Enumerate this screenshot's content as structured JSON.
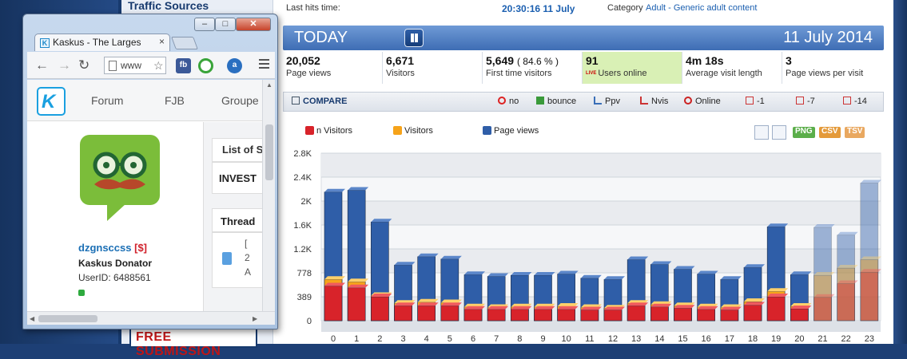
{
  "side": {
    "title": "Traffic Sources",
    "free_submission": "FREE SUBMISSION"
  },
  "header": {
    "last_hits_label": "Last hits time:",
    "last_hits_value": "20:30:16 11 July",
    "category_label": "Category",
    "category_value": "Adult - Generic adult content"
  },
  "today": {
    "label": "TODAY",
    "date": "11 July 2014"
  },
  "summary": [
    {
      "value": "20,052",
      "label": "Page views"
    },
    {
      "value": "6,671",
      "label": "Visitors"
    },
    {
      "value": "5,649",
      "pct": "( 84.6 % )",
      "label": "First time visitors"
    },
    {
      "value": "91",
      "live": "LIVE",
      "label": "Users online"
    },
    {
      "value": "4m 18s",
      "label": "Average visit length"
    },
    {
      "value": "3",
      "label": "Page views per visit"
    }
  ],
  "compare": {
    "title": "COMPARE",
    "items": [
      "no",
      "bounce",
      "Ppv",
      "Nvis",
      "Online",
      "-1",
      "-7",
      "-14"
    ]
  },
  "legend": [
    "n Visitors",
    "Visitors",
    "Page views"
  ],
  "export": [
    "PNG",
    "CSV",
    "TSV"
  ],
  "colors": {
    "red": "#d8232a",
    "orange": "#f6a31a",
    "blue": "#2f5ea8",
    "accent": "#3e6db4"
  },
  "chart_data": {
    "type": "bar",
    "categories": [
      "0",
      "1",
      "2",
      "3",
      "4",
      "5",
      "6",
      "7",
      "8",
      "9",
      "10",
      "11",
      "12",
      "13",
      "14",
      "15",
      "16",
      "17",
      "18",
      "19",
      "20",
      "21",
      "22",
      "23"
    ],
    "y_ticks": [
      "0",
      "389",
      "778",
      "1.2K",
      "1.6K",
      "2K",
      "2.4K",
      "2.8K"
    ],
    "ylim": [
      0,
      2800
    ],
    "grid": true,
    "series": [
      {
        "name": "Page views",
        "values": [
          2150,
          2180,
          1650,
          930,
          1070,
          1030,
          770,
          740,
          760,
          760,
          780,
          710,
          690,
          1020,
          940,
          860,
          780,
          690,
          890,
          1570,
          770,
          1560,
          1430,
          2300
        ]
      },
      {
        "name": "Visitors",
        "values": [
          690,
          650,
          420,
          290,
          310,
          300,
          230,
          220,
          230,
          230,
          240,
          220,
          210,
          290,
          270,
          250,
          230,
          220,
          320,
          490,
          240,
          760,
          880,
          1020
        ]
      },
      {
        "name": "n Visitors",
        "values": [
          580,
          550,
          400,
          250,
          250,
          250,
          190,
          190,
          190,
          190,
          190,
          180,
          180,
          250,
          230,
          210,
          190,
          180,
          260,
          400,
          200,
          390,
          620,
          810
        ]
      }
    ]
  },
  "browser": {
    "tab_title": "Kaskus - The Larges",
    "tab_close": "×",
    "url": "www",
    "ext1": "fb",
    "ext3": "a",
    "win_min": "–",
    "win_max": "□",
    "win_close": "✕",
    "nav": [
      "Forum",
      "FJB",
      "Groupe"
    ],
    "logo_letter": "K",
    "profile": {
      "name": "dzgnsccss",
      "badge": "[$]",
      "role": "Kaskus Donator",
      "user_id": "UserID: 6488561"
    },
    "list_tab": "List of S",
    "invest": "INVEST",
    "thread": "Thread",
    "row_text": [
      "[",
      "2",
      "A"
    ]
  }
}
